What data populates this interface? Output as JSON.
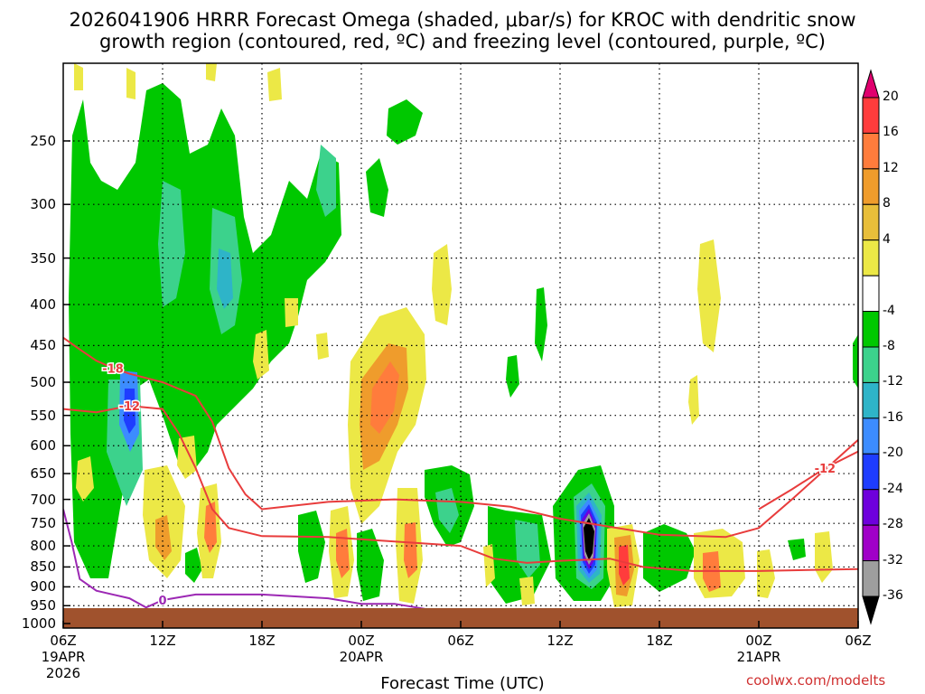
{
  "chart_data": {
    "type": "heatmap",
    "title_line1": "2026041906 HRRR Forecast Omega (shaded, μbar/s) for KROC with dendritic snow",
    "title_line2": "growth region (contoured, red, ºC) and freezing level (contoured, purple, ºC)",
    "xlabel": "Forecast Time (UTC)",
    "credit": "coolwx.com/modelts",
    "x_ticks": [
      {
        "hour": 0,
        "label": "06Z",
        "date": "19APR",
        "year": "2026"
      },
      {
        "hour": 6,
        "label": "12Z"
      },
      {
        "hour": 12,
        "label": "18Z"
      },
      {
        "hour": 18,
        "label": "00Z",
        "date": "20APR"
      },
      {
        "hour": 24,
        "label": "06Z"
      },
      {
        "hour": 30,
        "label": "12Z"
      },
      {
        "hour": 36,
        "label": "18Z"
      },
      {
        "hour": 42,
        "label": "00Z",
        "date": "21APR"
      },
      {
        "hour": 48,
        "label": "06Z"
      }
    ],
    "y_axis": {
      "scale": "log-pressure",
      "range_hpa": [
        1013,
        200
      ],
      "tick_labels": [
        "250",
        "300",
        "350",
        "400",
        "450",
        "500",
        "550",
        "600",
        "650",
        "700",
        "750",
        "800",
        "850",
        "900",
        "950",
        "1000"
      ]
    },
    "colorbar": {
      "labels": [
        "20",
        "16",
        "12",
        "8",
        "4",
        "-4",
        "-8",
        "-12",
        "-16",
        "-20",
        "-24",
        "-28",
        "-32",
        "-36"
      ],
      "colors": [
        "#e0006e",
        "#ff3c3c",
        "#ff7c3c",
        "#ef9c2c",
        "#e8be3a",
        "#ece846",
        "#ffffff",
        "#00c800",
        "#3cd28c",
        "#2eb4c8",
        "#3c8cff",
        "#1e3cff",
        "#6e00dc",
        "#a000c8",
        "#9e9e9e",
        "#000000"
      ],
      "units": "μbar/s"
    },
    "series": [
      {
        "name": "-18",
        "kind": "dgz-upper",
        "color": "#e83c3c",
        "points": [
          [
            0,
            440
          ],
          [
            1,
            455
          ],
          [
            2,
            470
          ],
          [
            3,
            480
          ],
          [
            4,
            488
          ],
          [
            6,
            500
          ],
          [
            8,
            520
          ],
          [
            9,
            560
          ],
          [
            10,
            640
          ],
          [
            11,
            690
          ],
          [
            12,
            720
          ],
          [
            16,
            705
          ],
          [
            20,
            700
          ],
          [
            24,
            705
          ],
          [
            27,
            715
          ],
          [
            30,
            740
          ],
          [
            36,
            775
          ],
          [
            40,
            780
          ],
          [
            42,
            760
          ],
          [
            44,
            700
          ],
          [
            48,
            590
          ]
        ]
      },
      {
        "name": "-12",
        "kind": "dgz-lower",
        "color": "#e83c3c",
        "points": [
          [
            0,
            540
          ],
          [
            2,
            545
          ],
          [
            4,
            535
          ],
          [
            6,
            540
          ],
          [
            7,
            580
          ],
          [
            8,
            640
          ],
          [
            9,
            720
          ],
          [
            10,
            760
          ],
          [
            12,
            778
          ],
          [
            16,
            780
          ],
          [
            20,
            790
          ],
          [
            24,
            800
          ],
          [
            26,
            830
          ],
          [
            28,
            840
          ],
          [
            30,
            835
          ],
          [
            33,
            830
          ],
          [
            35,
            850
          ],
          [
            38,
            860
          ],
          [
            42,
            860
          ],
          [
            48,
            855
          ]
        ]
      },
      {
        "name": "-12",
        "kind": "dgz-lower-east",
        "color": "#e83c3c",
        "points": [
          [
            42,
            720
          ],
          [
            44,
            680
          ],
          [
            46,
            640
          ],
          [
            48,
            610
          ]
        ]
      },
      {
        "name": "0",
        "kind": "freezing-level",
        "color": "#9c28b4",
        "points": [
          [
            0,
            720
          ],
          [
            0.5,
            790
          ],
          [
            1,
            880
          ],
          [
            2,
            910
          ],
          [
            4,
            930
          ],
          [
            5,
            955
          ],
          [
            6,
            935
          ],
          [
            8,
            920
          ],
          [
            12,
            920
          ],
          [
            16,
            930
          ],
          [
            18,
            945
          ],
          [
            20,
            945
          ],
          [
            22,
            960
          ],
          [
            24,
            1000
          ]
        ]
      }
    ],
    "features": [
      {
        "kind": "minimum",
        "value": -36,
        "hour": 32,
        "p_hpa": 800,
        "note": "strongest upward motion"
      },
      {
        "kind": "minimum",
        "value": -20,
        "hour": 4,
        "p_hpa": 560
      },
      {
        "kind": "maximum",
        "value": 12,
        "hour": 21.5,
        "p_hpa": 550
      }
    ]
  }
}
